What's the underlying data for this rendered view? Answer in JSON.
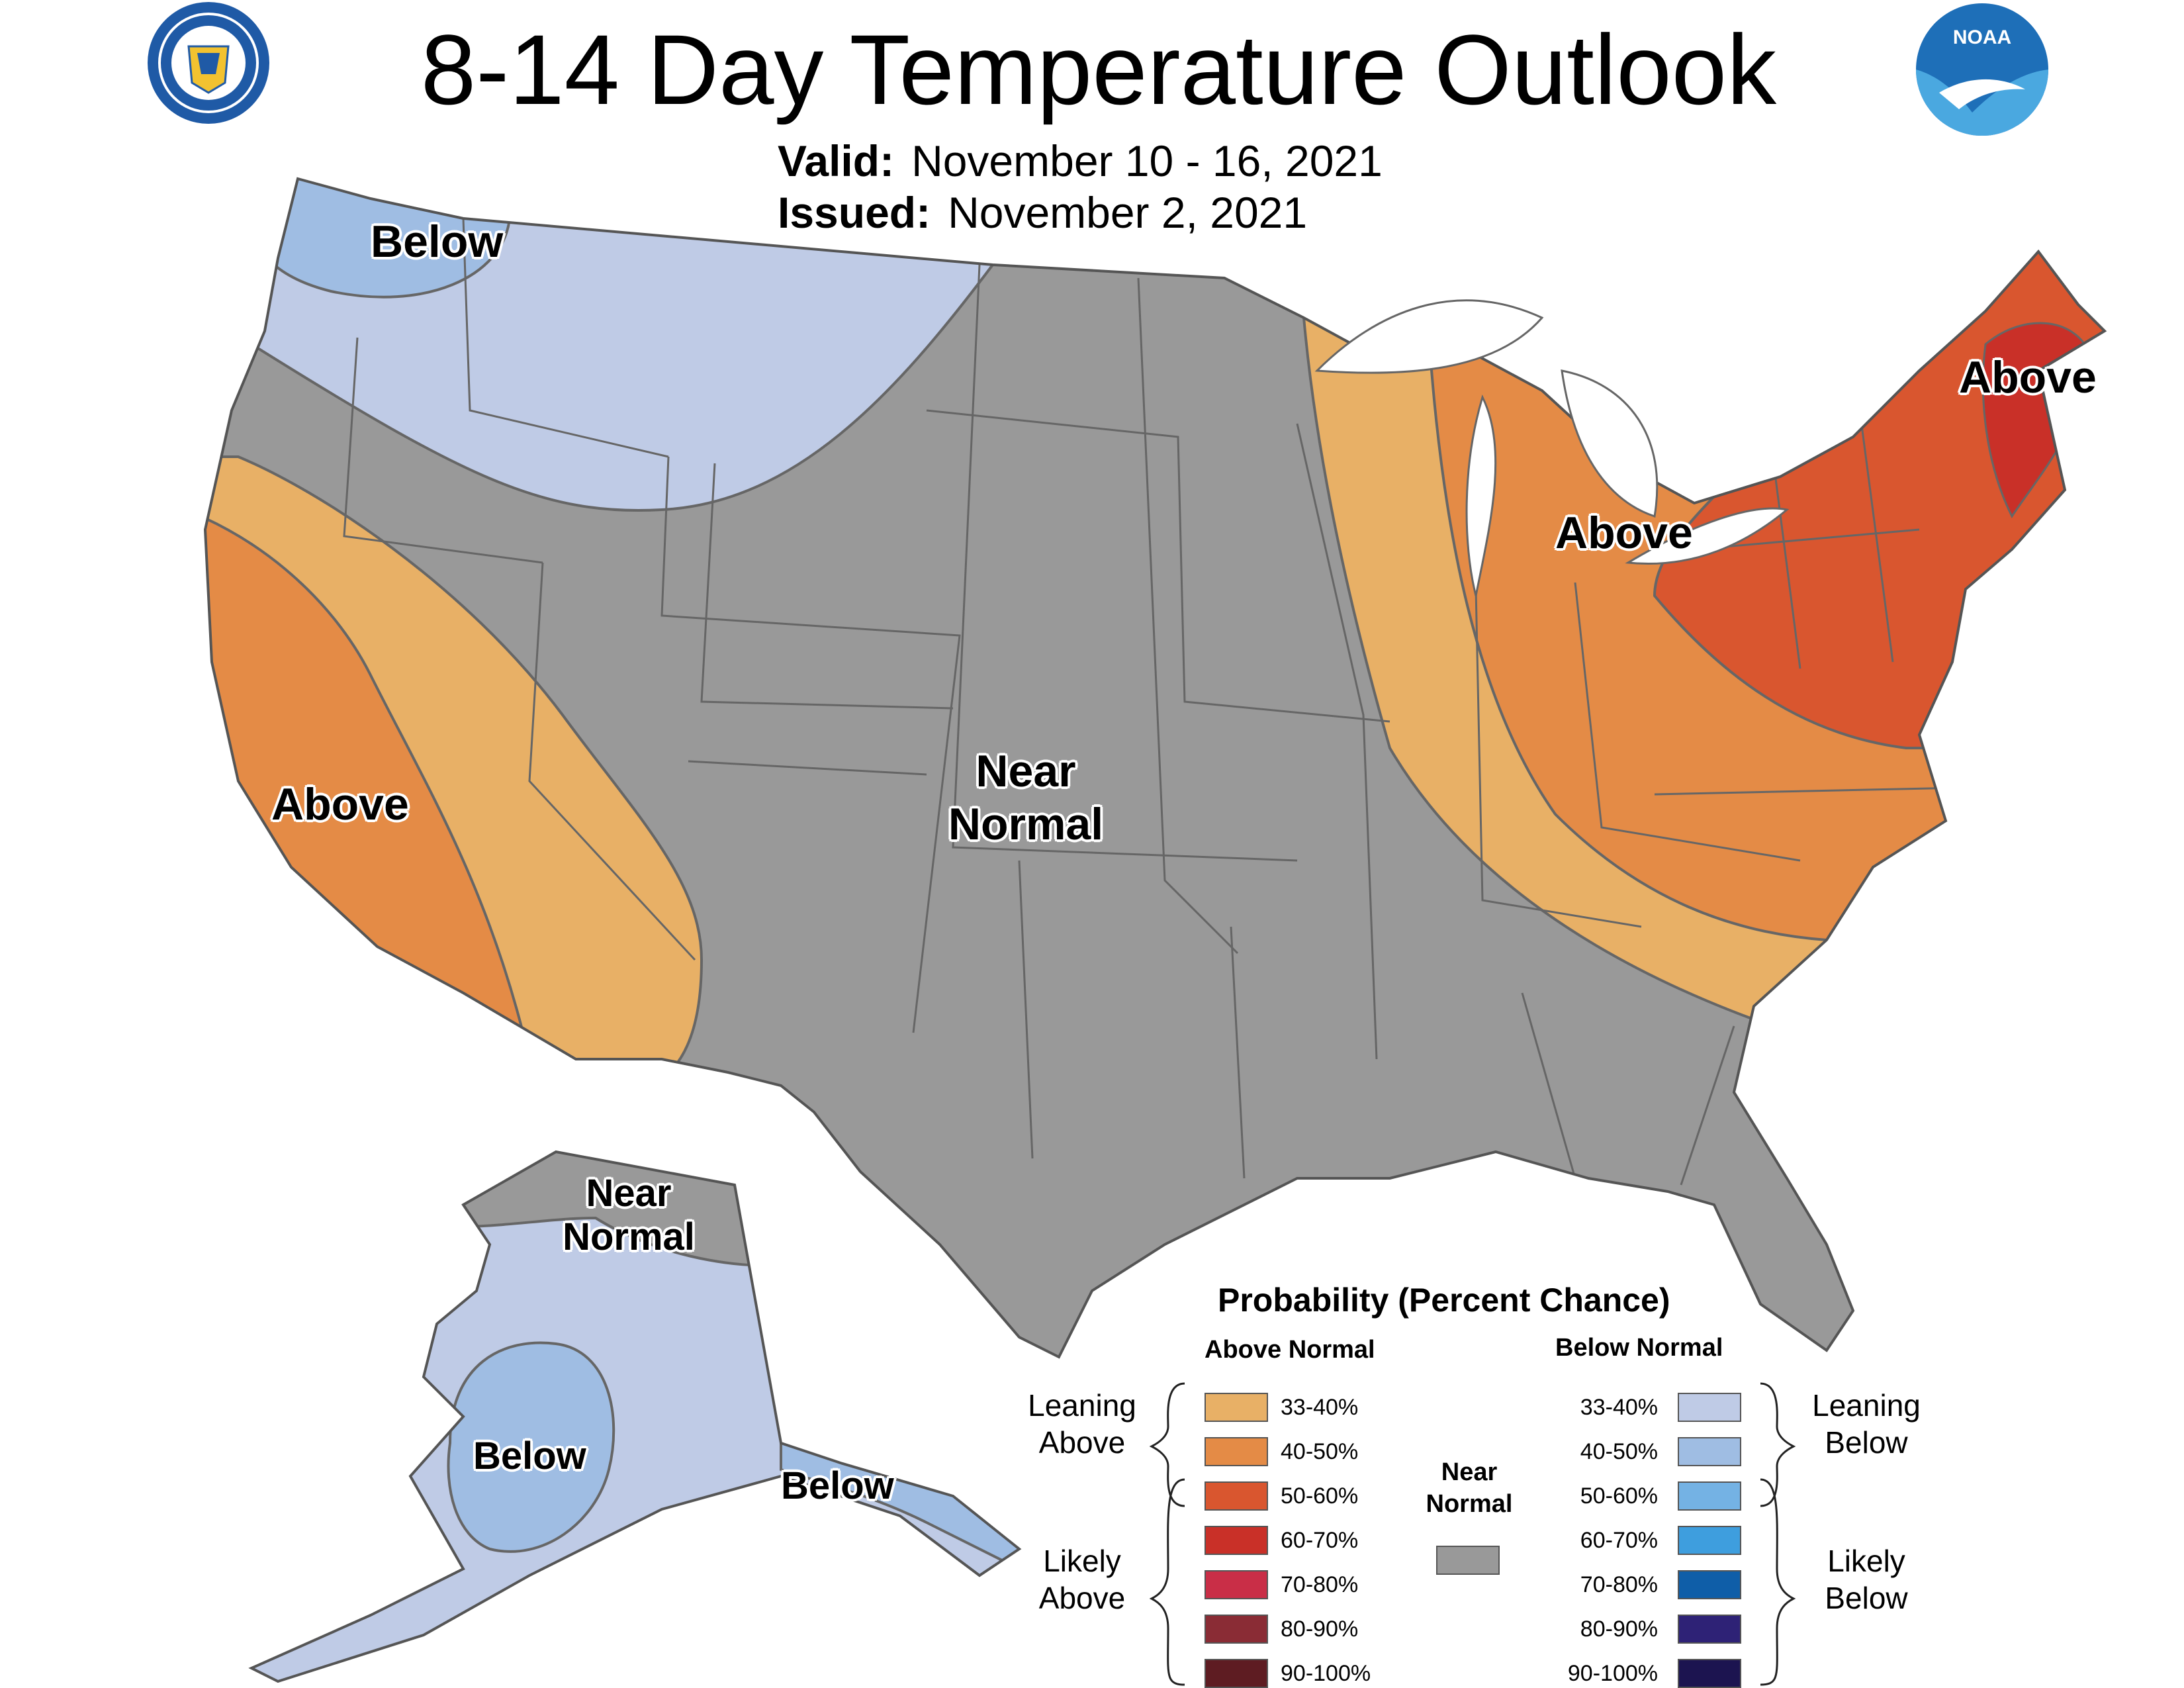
{
  "title": "8-14 Day Temperature Outlook",
  "valid_label": "Valid:",
  "valid_value": "November 10 - 16, 2021",
  "issued_label": "Issued:",
  "issued_value": "November 2, 2021",
  "logos": {
    "left": "seal-icon",
    "right": "noaa-icon",
    "right_text": "NOAA"
  },
  "regions": {
    "pnw_below": "Below",
    "sw_above": "Above",
    "central_near_1": "Near",
    "central_near_2": "Normal",
    "mi_above": "Above",
    "ne_above": "Above",
    "ak_near_1": "Near",
    "ak_near_2": "Normal",
    "ak_below": "Below",
    "se_ak_below": "Below"
  },
  "legend": {
    "title": "Probability (Percent Chance)",
    "above_header": "Above Normal",
    "below_header": "Below Normal",
    "leaning_above": [
      "Leaning",
      "Above"
    ],
    "likely_above": [
      "Likely",
      "Above"
    ],
    "leaning_below": [
      "Leaning",
      "Below"
    ],
    "likely_below": [
      "Likely",
      "Below"
    ],
    "near_normal": [
      "Near",
      "Normal"
    ],
    "ranges": [
      "33-40%",
      "40-50%",
      "50-60%",
      "60-70%",
      "70-80%",
      "80-90%",
      "90-100%"
    ],
    "above_colors": [
      "#e8b066",
      "#e48b46",
      "#d9562f",
      "#c93028",
      "#c92e47",
      "#8a2c35",
      "#5e1c22"
    ],
    "below_colors": [
      "#bfcbe6",
      "#9fbde3",
      "#74b2e4",
      "#3e9ede",
      "#0f5ea8",
      "#2e2276",
      "#1c1450"
    ],
    "near_color": "#999999"
  }
}
